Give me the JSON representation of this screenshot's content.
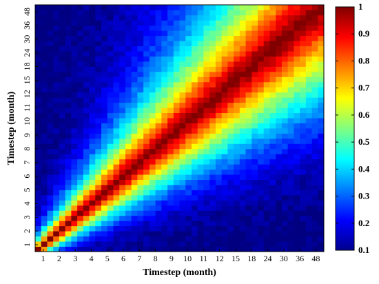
{
  "chart_data": {
    "type": "heatmap",
    "xlabel": "Timestep (month)",
    "ylabel": "Timestep (month)",
    "x_tick_labels": [
      "1",
      "2",
      "3",
      "4",
      "5",
      "6",
      "7",
      "8",
      "9",
      "10",
      "11",
      "12",
      "15",
      "18",
      "24",
      "30",
      "36",
      "48"
    ],
    "y_tick_labels": [
      "1",
      "2",
      "3",
      "4",
      "5",
      "6",
      "7",
      "8",
      "9",
      "10",
      "11",
      "12",
      "15",
      "18",
      "24",
      "30",
      "36",
      "48"
    ],
    "grid_size": 48,
    "colorscale": "jet",
    "colorbar": {
      "range": [
        0.1,
        1
      ],
      "ticks": [
        "0.1",
        "0.2",
        "0.3",
        "0.4",
        "0.5",
        "0.6",
        "0.7",
        "0.8",
        "0.9",
        "1"
      ]
    },
    "value_description": {
      "diagonal": 1.0,
      "corner_far": 0.1
    },
    "grid": false
  }
}
